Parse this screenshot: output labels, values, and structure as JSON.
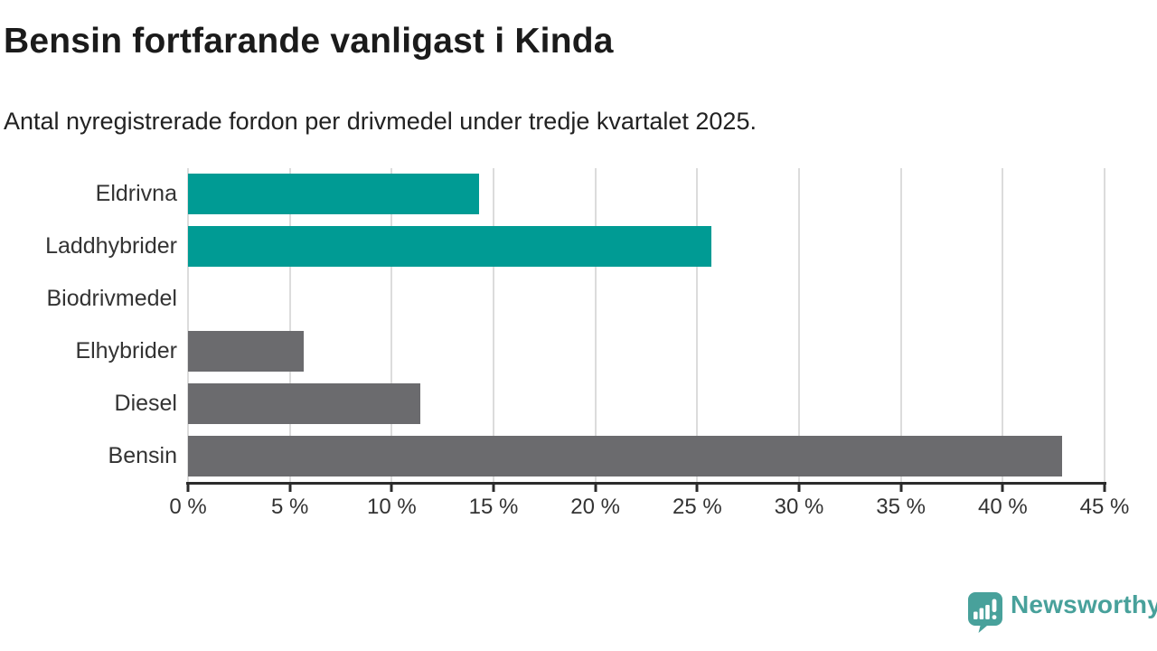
{
  "header": {
    "title": "Bensin fortfarande vanligast i Kinda",
    "subtitle": "Antal nyregistrerade fordon per drivmedel under tredje kvartalet 2025."
  },
  "chart_data": {
    "type": "bar",
    "orientation": "horizontal",
    "title": "Bensin fortfarande vanligast i Kinda",
    "subtitle": "Antal nyregistrerade fordon per drivmedel under tredje kvartalet 2025.",
    "categories": [
      "Eldrivna",
      "Laddhybrider",
      "Biodrivmedel",
      "Elhybrider",
      "Diesel",
      "Bensin"
    ],
    "values": [
      14.3,
      25.7,
      0,
      5.7,
      11.4,
      42.9
    ],
    "unit": "%",
    "bar_colors": [
      "#009b94",
      "#009b94",
      "#6b6b6e",
      "#6b6b6e",
      "#6b6b6e",
      "#6b6b6e"
    ],
    "x_axis": {
      "min": 0,
      "max": 45,
      "tick_step": 5,
      "ticks": [
        0,
        5,
        10,
        15,
        20,
        25,
        30,
        35,
        40,
        45
      ],
      "tick_labels": [
        "0 %",
        "5 %",
        "10 %",
        "15 %",
        "20 %",
        "25 %",
        "30 %",
        "35 %",
        "40 %",
        "45 %"
      ]
    },
    "grid": "vertical",
    "legend": "none"
  },
  "footer": {
    "brand": "Newsworthy"
  },
  "colors": {
    "accent_teal": "#009b94",
    "bar_gray": "#6b6b6e",
    "logo_teal": "#48a19b",
    "gridline": "#dcdcdc",
    "axis": "#2b2b2b",
    "title_text": "#1b1b1b",
    "body_text": "#333333"
  }
}
